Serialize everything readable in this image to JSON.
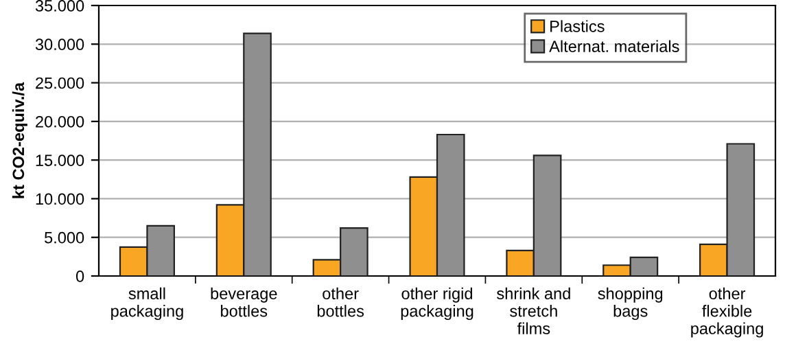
{
  "chart_data": {
    "type": "bar",
    "ylabel": "kt CO2-equiv./a",
    "categories": [
      "small\npackaging",
      "beverage\nbottles",
      "other\nbottles",
      "other rigid\npackaging",
      "shrink and\nstretch\nfilms",
      "shopping\nbags",
      "other\nflexible\npackaging"
    ],
    "series": [
      {
        "name": "Plastics",
        "color": "#f8a624",
        "values": [
          3750,
          9200,
          2100,
          12800,
          3300,
          1400,
          4100
        ]
      },
      {
        "name": "Alternat. materials",
        "color": "#8f8f8f",
        "values": [
          6500,
          31400,
          6200,
          18300,
          15600,
          2400,
          17100
        ]
      }
    ],
    "ylim": [
      0,
      35000
    ],
    "yticks": [
      0,
      {
        "value": 5000,
        "label": "5.000"
      },
      {
        "value": 10000,
        "label": "10.000"
      },
      {
        "value": 15000,
        "label": "15.000"
      },
      {
        "value": 20000,
        "label": "20.000"
      },
      {
        "value": 25000,
        "label": "25.000"
      },
      {
        "value": 30000,
        "label": "30.000"
      },
      {
        "value": 35000,
        "label": "35.000"
      }
    ],
    "grid": "y",
    "legend": "top right"
  }
}
